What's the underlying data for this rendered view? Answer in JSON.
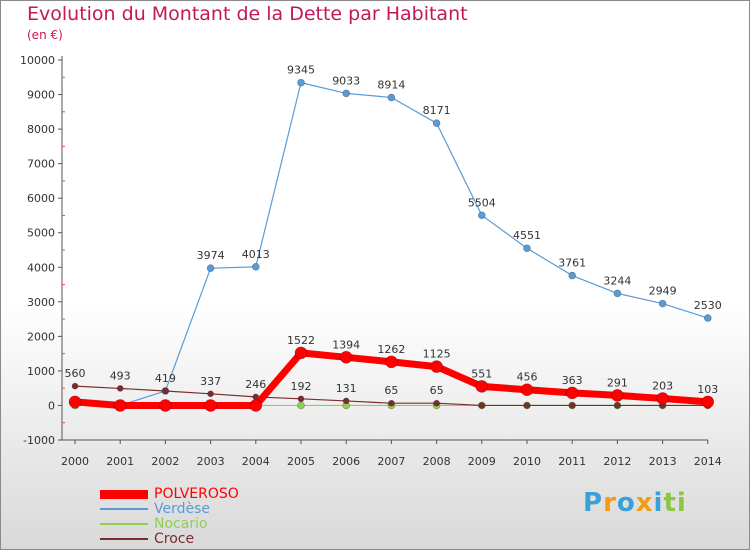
{
  "chart_data": {
    "type": "line",
    "title": "Evolution du Montant de la Dette par Habitant",
    "subtitle": "(en €)",
    "x": [
      "2000",
      "2001",
      "2002",
      "2003",
      "2004",
      "2005",
      "2006",
      "2007",
      "2008",
      "2009",
      "2010",
      "2011",
      "2012",
      "2013",
      "2014"
    ],
    "ylim": [
      -1000,
      10000
    ],
    "yticks": [
      "-1000",
      "0",
      "1000",
      "2000",
      "3000",
      "4000",
      "5000",
      "6000",
      "7000",
      "8000",
      "9000",
      "10000"
    ],
    "grid": false,
    "legend_position": "bottom-left",
    "series": [
      {
        "name": "POLVEROSO",
        "color": "#ff0000",
        "values": [
          103,
          0,
          0,
          0,
          0,
          1522,
          1394,
          1262,
          1125,
          551,
          456,
          363,
          291,
          203,
          103
        ],
        "labels": [
          "",
          "",
          "",
          "",
          "",
          "1522",
          "1394",
          "1262",
          "1125",
          "551",
          "456",
          "363",
          "291",
          "203",
          "103"
        ]
      },
      {
        "name": "Verdèse",
        "color": "#5b9bd5",
        "values": [
          0,
          0,
          419,
          3974,
          4013,
          9345,
          9033,
          8914,
          8171,
          5504,
          4551,
          3761,
          3244,
          2949,
          2530
        ],
        "labels": [
          "",
          "",
          "",
          "3974",
          "4013",
          "9345",
          "9033",
          "8914",
          "8171",
          "5504",
          "4551",
          "3761",
          "3244",
          "2949",
          "2530"
        ]
      },
      {
        "name": "Nocario",
        "color": "#8fd14f",
        "values": [
          0,
          0,
          0,
          0,
          0,
          0,
          0,
          0,
          0,
          0,
          0,
          0,
          0,
          0,
          0
        ],
        "labels": []
      },
      {
        "name": "Croce",
        "color": "#7b2c2c",
        "values": [
          560,
          493,
          419,
          337,
          246,
          192,
          131,
          65,
          65,
          0,
          0,
          0,
          0,
          0,
          0
        ],
        "labels": [
          "560",
          "493",
          "419",
          "337",
          "246",
          "192",
          "131",
          "65",
          "65",
          "",
          "",
          "",
          "",
          "",
          ""
        ]
      }
    ]
  },
  "logo": {
    "letters": [
      "P",
      "r",
      "o",
      "x",
      "i",
      "t",
      "i"
    ],
    "colors": [
      "#3aa0d8",
      "#f39c12",
      "#3aa0d8",
      "#f39c12",
      "#3aa0d8",
      "#8dc63f",
      "#8dc63f"
    ]
  }
}
